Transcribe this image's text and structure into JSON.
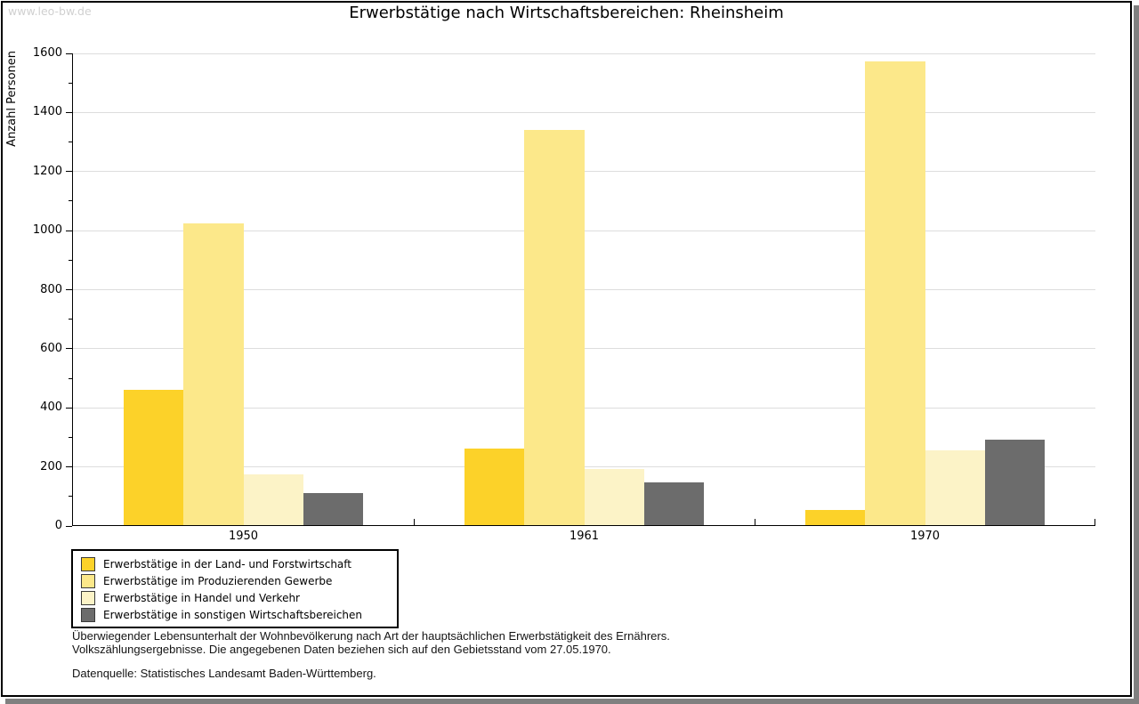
{
  "watermark": "www.leo-bw.de",
  "chart_data": {
    "type": "bar",
    "title": "Erwerbstätige nach Wirtschaftsbereichen: Rheinsheim",
    "xlabel": "",
    "ylabel": "Anzahl Personen",
    "categories": [
      "1950",
      "1961",
      "1970"
    ],
    "series": [
      {
        "name": "Erwerbstätige in der Land- und Forstwirtschaft",
        "color": "#FCD229",
        "values": [
          460,
          262,
          54
        ]
      },
      {
        "name": "Erwerbstätige im Produzierenden Gewerbe",
        "color": "#FCE88A",
        "values": [
          1025,
          1341,
          1573
        ]
      },
      {
        "name": "Erwerbstätige in Handel und Verkehr",
        "color": "#FCF3C7",
        "values": [
          176,
          192,
          257
        ]
      },
      {
        "name": "Erwerbstätige in sonstigen Wirtschaftsbereichen",
        "color": "#6C6C6C",
        "values": [
          112,
          147,
          293
        ]
      }
    ],
    "ylim": [
      0,
      1600
    ],
    "y_major_step": 200,
    "y_minor_step": 100,
    "y_tick_labels": [
      "0",
      "200",
      "400",
      "600",
      "800",
      "1000",
      "1200",
      "1400",
      "1600"
    ],
    "grid": "horizontal-major",
    "legend_position": "bottom-left"
  },
  "notes": {
    "line1": "Überwiegender Lebensunterhalt der Wohnbevölkerung nach Art der hauptsächlichen Erwerbstätigkeit des Ernährers.",
    "line2": "Volkszählungsergebnisse. Die angegebenen Daten beziehen sich auf den Gebietsstand vom 27.05.1970.",
    "source": "Datenquelle: Statistisches Landesamt Baden-Württemberg."
  },
  "colors": {
    "axis": "#000000",
    "gridline": "#DDDDDD",
    "frame_shadow": "#808080",
    "watermark": "#D0D0D0"
  }
}
